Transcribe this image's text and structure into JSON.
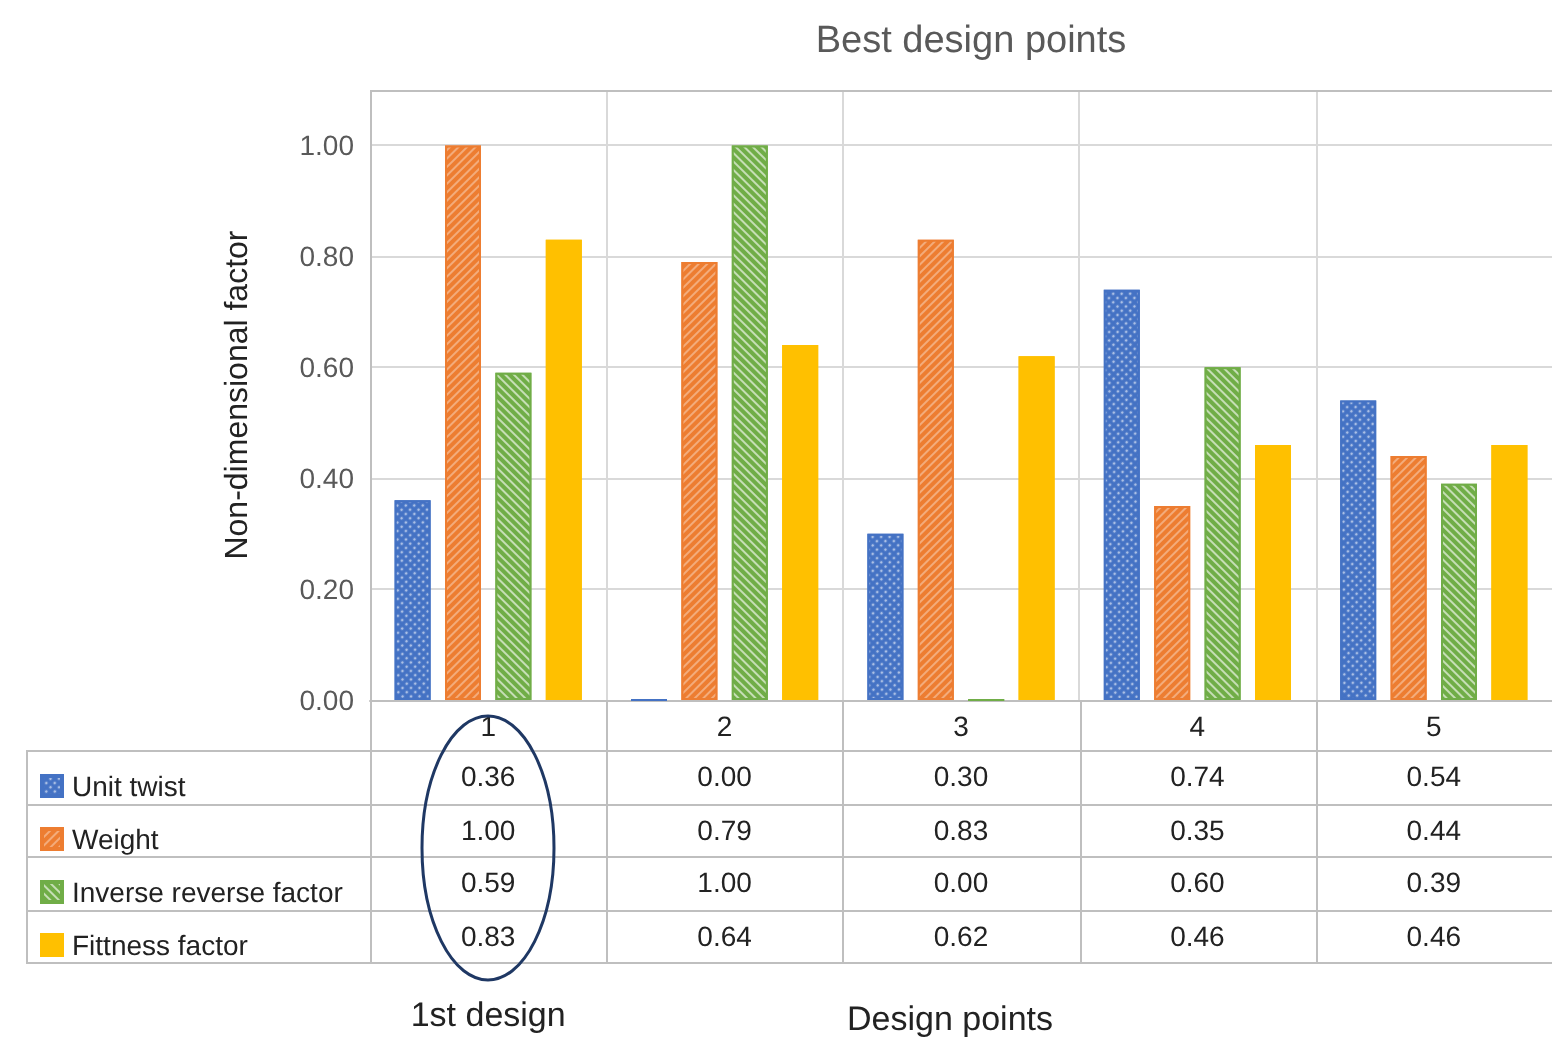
{
  "chart_data": {
    "type": "bar",
    "title": "Best design points",
    "ylabel": "Non-dimensional factor",
    "categories": [
      "1",
      "2",
      "3",
      "4",
      "5"
    ],
    "series": [
      {
        "name": "Unit twist",
        "color": "#4472c4",
        "values": [
          0.36,
          0.0,
          0.3,
          0.74,
          0.54
        ],
        "value_labels": [
          "0.36",
          "0.00",
          "0.30",
          "0.74",
          "0.54"
        ]
      },
      {
        "name": "Weight",
        "color": "#ed7d31",
        "values": [
          1.0,
          0.79,
          0.83,
          0.35,
          0.44
        ],
        "value_labels": [
          "1.00",
          "0.79",
          "0.83",
          "0.35",
          "0.44"
        ]
      },
      {
        "name": "Inverse reverse factor",
        "color": "#70ad47",
        "values": [
          0.59,
          1.0,
          0.0,
          0.6,
          0.39
        ],
        "value_labels": [
          "0.59",
          "1.00",
          "0.00",
          "0.60",
          "0.39"
        ]
      },
      {
        "name": "Fittness factor",
        "color": "#ffc000",
        "values": [
          0.83,
          0.64,
          0.62,
          0.46,
          0.46
        ],
        "value_labels": [
          "0.83",
          "0.64",
          "0.62",
          "0.46",
          "0.46"
        ]
      }
    ],
    "ylim": [
      0,
      1.1
    ],
    "yticks": [
      {
        "value": 0,
        "label": "0.00"
      },
      {
        "value": 0.2,
        "label": "0.20"
      },
      {
        "value": 0.4,
        "label": "0.40"
      },
      {
        "value": 0.6,
        "label": "0.60"
      },
      {
        "value": 0.8,
        "label": "0.80"
      },
      {
        "value": 1.0,
        "label": "1.00"
      }
    ],
    "grid": true,
    "legend": "bottom left",
    "annotations": [
      "1st design",
      "Design points"
    ]
  }
}
